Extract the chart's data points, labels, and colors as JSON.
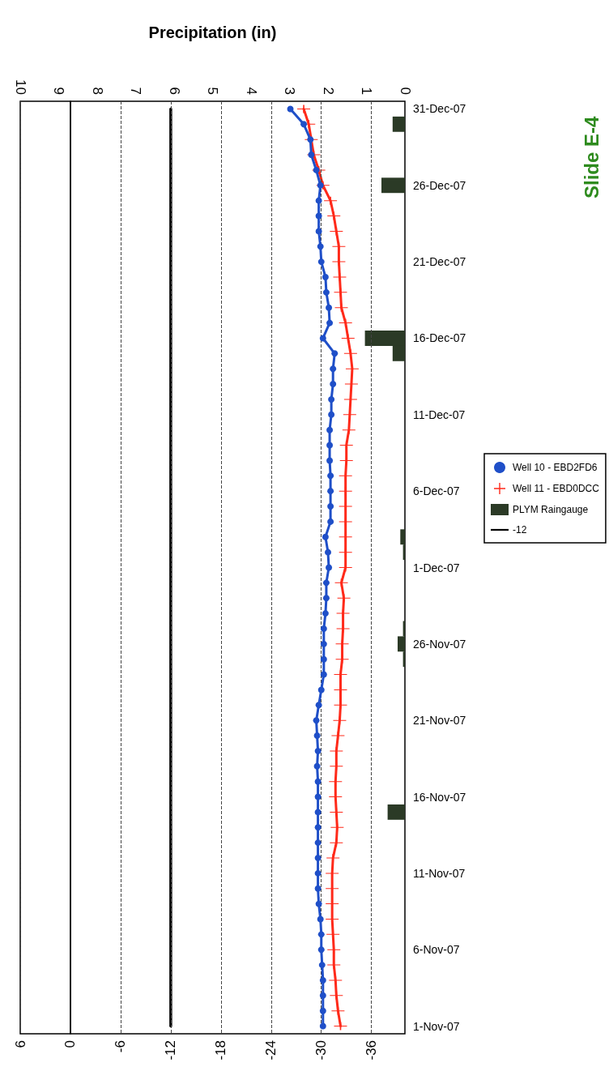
{
  "chart_data": {
    "type": "line",
    "orientation": "horizontal",
    "x2label": "Precipitation (in)",
    "annotations": [
      "Slide E-4"
    ],
    "categories": [
      "31-Dec-07",
      null,
      null,
      null,
      null,
      "26-Dec-07",
      null,
      null,
      null,
      null,
      "21-Dec-07",
      null,
      null,
      null,
      null,
      "16-Dec-07",
      null,
      null,
      null,
      null,
      "11-Dec-07",
      null,
      null,
      null,
      null,
      "6-Dec-07",
      null,
      null,
      null,
      null,
      "1-Dec-07",
      null,
      null,
      null,
      null,
      "26-Nov-07",
      null,
      null,
      null,
      null,
      "21-Nov-07",
      null,
      null,
      null,
      null,
      "16-Nov-07",
      null,
      null,
      null,
      null,
      "11-Nov-07",
      null,
      null,
      null,
      null,
      "6-Nov-07",
      null,
      null,
      null,
      null,
      "1-Nov-07"
    ],
    "series": [
      {
        "name": "Well 10 - EBD2FD6",
        "color": "#1f4fc8",
        "marker": "circle",
        "values": [
          -26.3,
          -27.9,
          -28.7,
          -28.8,
          -29.4,
          -29.9,
          -29.7,
          -29.7,
          -29.7,
          -29.9,
          -30.0,
          -30.5,
          -30.6,
          -30.9,
          -31.0,
          -30.2,
          -31.6,
          -31.4,
          -31.4,
          -31.2,
          -31.2,
          -31.0,
          -31.0,
          -31.0,
          -31.1,
          -31.1,
          -31.1,
          -31.1,
          -30.5,
          -30.8,
          -30.9,
          -30.6,
          -30.6,
          -30.5,
          -30.3,
          -30.3,
          -30.3,
          -30.3,
          -30.0,
          -29.7,
          -29.4,
          -29.5,
          -29.6,
          -29.5,
          -29.6,
          -29.6,
          -29.6,
          -29.6,
          -29.6,
          -29.6,
          -29.6,
          -29.6,
          -29.7,
          -29.9,
          -30.0,
          -30.0,
          -30.1,
          -30.2,
          -30.2,
          -30.2,
          -30.2
        ]
      },
      {
        "name": "Well 11 - EBD0DCC",
        "color": "#ff2a1a",
        "marker": "cross",
        "values": [
          -27.9,
          -28.5,
          -28.8,
          -29.1,
          -29.7,
          -30.2,
          -31.1,
          -31.5,
          -31.8,
          -32.1,
          -32.1,
          -32.2,
          -32.3,
          -32.4,
          -32.9,
          -33.2,
          -33.5,
          -33.7,
          -33.6,
          -33.5,
          -33.4,
          -33.3,
          -33.0,
          -33.0,
          -32.9,
          -32.9,
          -32.9,
          -32.9,
          -32.9,
          -32.9,
          -32.9,
          -32.4,
          -32.7,
          -32.6,
          -32.6,
          -32.5,
          -32.5,
          -32.3,
          -32.3,
          -32.3,
          -32.2,
          -32.0,
          -31.8,
          -31.8,
          -31.7,
          -31.7,
          -31.8,
          -31.9,
          -31.8,
          -31.4,
          -31.3,
          -31.3,
          -31.3,
          -31.3,
          -31.4,
          -31.5,
          -31.5,
          -31.7,
          -31.8,
          -32.0,
          -32.3
        ]
      },
      {
        "name": "PLYM Raingauge",
        "type": "bar",
        "axis": "x2",
        "color": "#2b3a26",
        "values": [
          null,
          0.32,
          null,
          null,
          null,
          0.61,
          null,
          null,
          null,
          null,
          null,
          null,
          null,
          null,
          null,
          1.04,
          0.32,
          null,
          null,
          null,
          null,
          null,
          null,
          null,
          null,
          null,
          null,
          null,
          0.12,
          0.05,
          null,
          null,
          null,
          null,
          0.05,
          0.19,
          0.05,
          null,
          null,
          null,
          null,
          null,
          null,
          null,
          null,
          null,
          0.45,
          null,
          null,
          null,
          null,
          null,
          null,
          null,
          null,
          null,
          null,
          null,
          null,
          null,
          null
        ]
      },
      {
        "name": "-12",
        "color": "#000000",
        "marker": "none",
        "values": [
          -12,
          -12,
          -12,
          -12,
          -12,
          -12,
          -12,
          -12,
          -12,
          -12,
          -12,
          -12,
          -12,
          -12,
          -12,
          -12,
          -12,
          -12,
          -12,
          -12,
          -12,
          -12,
          -12,
          -12,
          -12,
          -12,
          -12,
          -12,
          -12,
          -12,
          -12,
          -12,
          -12,
          -12,
          -12,
          -12,
          -12,
          -12,
          -12,
          -12,
          -12,
          -12,
          -12,
          -12,
          -12,
          -12,
          -12,
          -12,
          -12,
          -12,
          -12,
          -12,
          -12,
          -12,
          -12,
          -12,
          -12,
          -12,
          -12,
          -12,
          -12
        ]
      }
    ],
    "xlim": [
      6,
      -40
    ],
    "xticks": [
      6,
      0,
      -6,
      -12,
      -18,
      -24,
      -30,
      -36
    ],
    "x2lim": [
      10,
      0
    ],
    "x2ticks": [
      10,
      9,
      8,
      7,
      6,
      5,
      4,
      3,
      2,
      1,
      0
    ],
    "ref_lines": [
      {
        "axis": "x",
        "value": 0,
        "color": "#000000",
        "line_style": "solid"
      }
    ],
    "grid": "x",
    "legend": "right"
  }
}
